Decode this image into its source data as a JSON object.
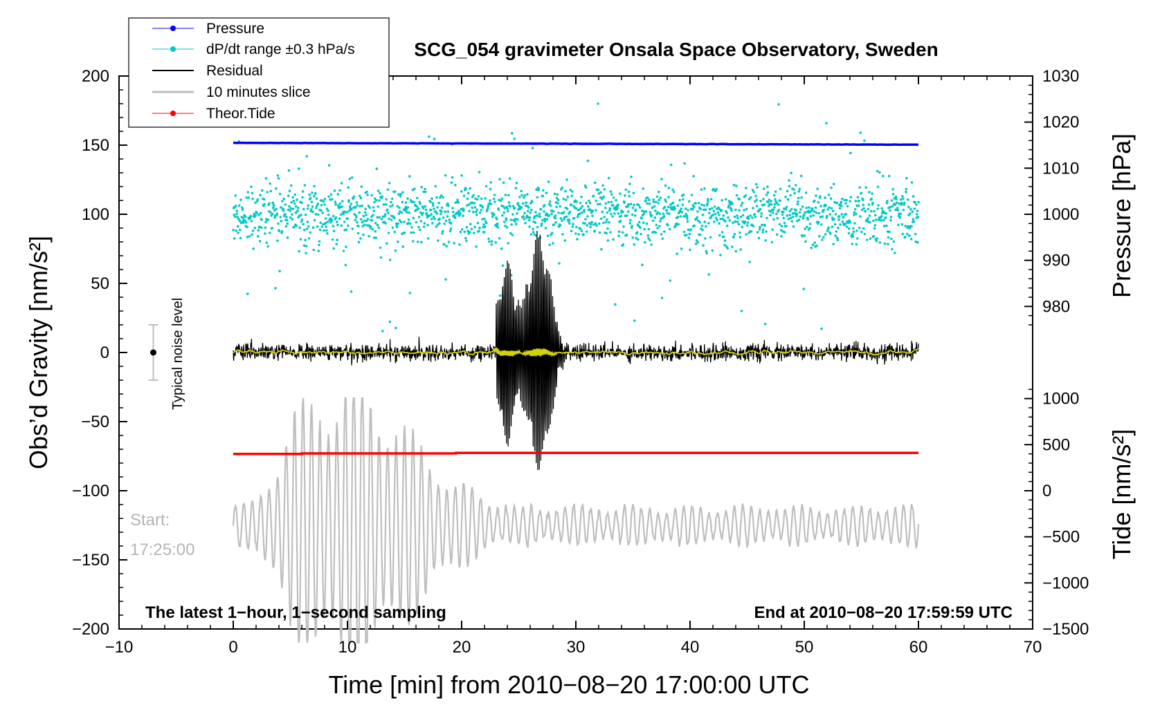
{
  "chart_data": {
    "type": "line",
    "title": "SCG_054 gravimeter Onsala Space Observatory, Sweden",
    "xlabel": "Time [min] from 2010−08−20 17:00:00 UTC",
    "ylabel_left": "Obs’d Gravity [nm/s²]",
    "ylabel_right_pressure": "Pressure [hPa]",
    "ylabel_right_tide": "Tide [nm/s²]",
    "xlim": [
      -10,
      70
    ],
    "ylim": [
      -200,
      200
    ],
    "pressure_axis_range": [
      975,
      1030
    ],
    "tide_axis_range": [
      -1500,
      1000
    ],
    "x_ticks": [
      "−10",
      "0",
      "10",
      "20",
      "30",
      "40",
      "50",
      "60",
      "70"
    ],
    "y_ticks_left": [
      "200",
      "150",
      "100",
      "50",
      "0",
      "−50",
      "−100",
      "−150",
      "−200"
    ],
    "y_ticks_pressure": [
      "1030",
      "1020",
      "1010",
      "1000",
      "990",
      "980"
    ],
    "y_ticks_tide": [
      "1000",
      "500",
      "0",
      "−500",
      "−1000",
      "−1500"
    ],
    "grid": false,
    "legend_position": "top-left",
    "legend": [
      {
        "label": "Pressure",
        "color": "#0000ff",
        "marker": "dot"
      },
      {
        "label": "dP/dt range ±0.3 hPa/s",
        "color": "#00c8c8",
        "marker": "dot"
      },
      {
        "label": "Residual",
        "color": "#000000",
        "marker": "line"
      },
      {
        "label": "10 minutes slice",
        "color": "#bebebe",
        "marker": "line"
      },
      {
        "label": "Theor.Tide",
        "color": "#ff0000",
        "marker": "dot"
      }
    ],
    "series": [
      {
        "name": "Pressure",
        "axis": "pressure",
        "unit": "hPa",
        "x": [
          0,
          60
        ],
        "values": [
          1015.5,
          1015.1
        ]
      },
      {
        "name": "dP/dt range ±0.3 hPa/s",
        "axis": "gravity",
        "center": 100,
        "spread": 20,
        "x_range": [
          0,
          60
        ],
        "outlier_max": 180,
        "outlier_min": 15
      },
      {
        "name": "Residual",
        "axis": "gravity",
        "x_range": [
          0,
          60
        ],
        "baseline": 0,
        "noise_amplitude": 5,
        "event_window_min": [
          23,
          31
        ],
        "peak_max": 88,
        "peak_min": -85
      },
      {
        "name": "Smoothed residual",
        "axis": "gravity",
        "x_range": [
          0,
          60
        ],
        "baseline": 0
      },
      {
        "name": "10 minutes slice",
        "axis": "gravity",
        "x_range": [
          0,
          60
        ],
        "baseline": -125,
        "start_label": "Start:",
        "start_time": "17:25:00",
        "max": -33,
        "min": -210
      },
      {
        "name": "Theor.Tide",
        "axis": "tide",
        "unit": "nm/s²",
        "x": [
          0,
          6,
          6,
          19.5,
          19.5,
          60
        ],
        "values": [
          400,
          400,
          405,
          405,
          410,
          410
        ]
      }
    ],
    "noise_marker": {
      "label": "Typical noise level",
      "x": -7,
      "center": 0,
      "half_range": 20
    },
    "annotations": {
      "bottom_left": "The latest 1−hour, 1−second sampling",
      "bottom_right": "End at 2010−08−20 17:59:59 UTC"
    },
    "colors": {
      "pressure": "#0000ff",
      "dpdt": "#00c8c8",
      "residual": "#000000",
      "smoothed": "#d2d20a",
      "slice": "#bebebe",
      "tide": "#ff0000",
      "noise_bar": "#bebebe"
    }
  }
}
